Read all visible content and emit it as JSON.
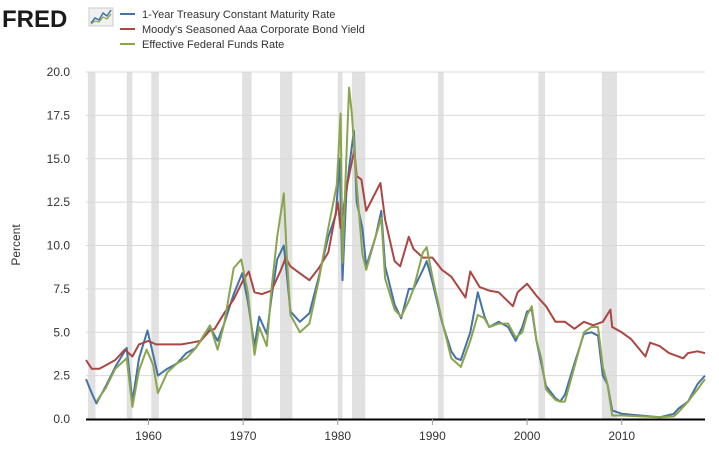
{
  "brand": {
    "name": "FRED"
  },
  "chart_data": {
    "type": "line",
    "title": "",
    "xlabel": "",
    "ylabel": "Percent",
    "xlim": [
      1953.4,
      2018.8
    ],
    "ylim": [
      0,
      20
    ],
    "yticks": [
      0.0,
      2.5,
      5.0,
      7.5,
      10.0,
      12.5,
      15.0,
      17.5,
      20.0
    ],
    "ytick_labels": [
      "0.0",
      "2.5",
      "5.0",
      "7.5",
      "10.0",
      "12.5",
      "15.0",
      "17.5",
      "20.0"
    ],
    "xticks": [
      1960,
      1970,
      1980,
      1990,
      2000,
      2010
    ],
    "xtick_labels": [
      "1960",
      "1970",
      "1980",
      "1990",
      "2000",
      "2010"
    ],
    "grid": true,
    "legend_position": "top-left",
    "recessions": [
      [
        1953.6,
        1954.4
      ],
      [
        1957.7,
        1958.3
      ],
      [
        1960.3,
        1961.1
      ],
      [
        1969.9,
        1970.9
      ],
      [
        1973.9,
        1975.2
      ],
      [
        1980.0,
        1980.5
      ],
      [
        1981.5,
        1982.9
      ],
      [
        1990.6,
        1991.2
      ],
      [
        2001.2,
        2001.9
      ],
      [
        2007.9,
        2009.5
      ]
    ],
    "series": [
      {
        "name": "1-Year Treasury Constant Maturity Rate",
        "color": "#4572a7",
        "x": [
          1953.4,
          1954.0,
          1954.5,
          1955.5,
          1956.5,
          1957.7,
          1958.3,
          1959.0,
          1959.9,
          1960.5,
          1961.0,
          1962.0,
          1963.0,
          1964.0,
          1965.0,
          1966.5,
          1967.3,
          1968.0,
          1969.0,
          1969.9,
          1970.5,
          1971.2,
          1971.7,
          1972.5,
          1973.0,
          1973.6,
          1974.3,
          1974.6,
          1975.0,
          1976.0,
          1977.0,
          1978.0,
          1979.0,
          1979.8,
          1980.2,
          1980.5,
          1980.9,
          1981.2,
          1981.7,
          1982.0,
          1982.6,
          1983.0,
          1984.0,
          1984.6,
          1985.0,
          1986.0,
          1986.7,
          1987.5,
          1988.0,
          1989.0,
          1989.4,
          1990.0,
          1991.0,
          1992.0,
          1992.5,
          1993.0,
          1994.0,
          1994.8,
          1995.5,
          1996.0,
          1997.0,
          1998.0,
          1998.8,
          1999.5,
          2000.0,
          2000.5,
          2001.0,
          2001.5,
          2002.0,
          2003.0,
          2003.5,
          2004.0,
          2005.0,
          2006.0,
          2006.8,
          2007.5,
          2008.0,
          2008.5,
          2009.0,
          2010.0,
          2012.0,
          2014.0,
          2015.5,
          2016.0,
          2017.0,
          2018.0,
          2018.8
        ],
        "values": [
          2.3,
          1.5,
          0.9,
          1.9,
          3.0,
          4.1,
          1.0,
          3.5,
          5.1,
          3.7,
          2.5,
          2.9,
          3.2,
          3.8,
          4.1,
          5.3,
          4.5,
          5.5,
          7.2,
          8.4,
          6.8,
          4.2,
          5.9,
          4.9,
          7.0,
          9.2,
          10.0,
          8.4,
          6.2,
          5.6,
          6.1,
          8.2,
          10.5,
          11.8,
          15.0,
          8.0,
          13.0,
          14.5,
          16.6,
          12.5,
          11.0,
          8.8,
          10.5,
          12.0,
          8.8,
          6.6,
          5.8,
          7.5,
          7.5,
          8.6,
          9.1,
          7.9,
          5.6,
          3.9,
          3.5,
          3.4,
          5.0,
          7.3,
          5.9,
          5.3,
          5.6,
          5.3,
          4.5,
          5.3,
          6.2,
          6.3,
          4.5,
          3.2,
          1.9,
          1.2,
          1.0,
          1.4,
          3.2,
          4.9,
          5.0,
          4.8,
          2.5,
          2.0,
          0.5,
          0.3,
          0.2,
          0.1,
          0.3,
          0.6,
          1.0,
          2.0,
          2.5
        ]
      },
      {
        "name": "Moody's Seasoned Aaa Corporate Bond Yield",
        "color": "#aa4643",
        "x": [
          1953.4,
          1954.0,
          1954.8,
          1955.5,
          1956.5,
          1957.5,
          1958.3,
          1959.0,
          1960.0,
          1960.8,
          1961.5,
          1962.5,
          1963.5,
          1964.5,
          1965.5,
          1966.5,
          1967.0,
          1968.0,
          1969.0,
          1970.0,
          1970.6,
          1971.2,
          1972.0,
          1973.0,
          1974.0,
          1974.5,
          1975.0,
          1976.0,
          1977.0,
          1978.0,
          1979.0,
          1980.0,
          1980.3,
          1980.5,
          1981.0,
          1981.75,
          1982.0,
          1982.5,
          1983.0,
          1984.5,
          1985.0,
          1986.0,
          1986.6,
          1987.5,
          1988.0,
          1989.0,
          1990.0,
          1991.0,
          1992.0,
          1993.5,
          1994.0,
          1995.0,
          1996.0,
          1997.0,
          1998.5,
          1999.0,
          2000.0,
          2001.0,
          2002.0,
          2003.0,
          2004.0,
          2005.0,
          2006.0,
          2007.0,
          2008.0,
          2008.8,
          2009.0,
          2010.0,
          2011.0,
          2012.5,
          2013.0,
          2014.0,
          2015.0,
          2016.5,
          2017.0,
          2018.0,
          2018.8
        ],
        "values": [
          3.4,
          2.9,
          2.9,
          3.1,
          3.4,
          4.0,
          3.6,
          4.3,
          4.5,
          4.3,
          4.3,
          4.3,
          4.3,
          4.4,
          4.5,
          5.1,
          5.2,
          6.1,
          6.9,
          8.0,
          8.5,
          7.3,
          7.2,
          7.4,
          8.6,
          9.3,
          8.8,
          8.4,
          8.0,
          8.7,
          9.6,
          12.5,
          11.0,
          11.8,
          13.5,
          15.5,
          14.0,
          13.8,
          12.0,
          13.6,
          11.5,
          9.1,
          8.8,
          10.5,
          9.8,
          9.3,
          9.3,
          8.6,
          8.2,
          7.0,
          8.5,
          7.6,
          7.4,
          7.3,
          6.5,
          7.3,
          7.8,
          7.1,
          6.5,
          5.6,
          5.6,
          5.2,
          5.6,
          5.4,
          5.6,
          6.3,
          5.3,
          5.0,
          4.6,
          3.6,
          4.4,
          4.2,
          3.8,
          3.5,
          3.8,
          3.9,
          3.8
        ]
      },
      {
        "name": "Effective Federal Funds Rate",
        "color": "#89a54e",
        "x": [
          1954.5,
          1955.5,
          1956.5,
          1957.7,
          1958.3,
          1959.0,
          1959.8,
          1960.5,
          1961.0,
          1962.0,
          1963.0,
          1964.0,
          1965.0,
          1966.5,
          1967.3,
          1968.0,
          1969.0,
          1969.8,
          1970.5,
          1971.2,
          1971.7,
          1972.5,
          1973.0,
          1973.6,
          1974.3,
          1974.6,
          1975.0,
          1976.0,
          1977.0,
          1978.0,
          1979.0,
          1979.9,
          1980.3,
          1980.5,
          1980.9,
          1981.2,
          1981.5,
          1982.0,
          1982.6,
          1983.0,
          1984.0,
          1984.6,
          1985.0,
          1986.0,
          1986.7,
          1987.5,
          1988.0,
          1989.0,
          1989.4,
          1990.0,
          1991.0,
          1992.0,
          1993.0,
          1994.0,
          1994.8,
          1995.5,
          1996.0,
          1997.0,
          1998.0,
          1998.8,
          1999.5,
          2000.0,
          2000.5,
          2001.0,
          2001.5,
          2002.0,
          2003.0,
          2003.5,
          2004.0,
          2005.0,
          2006.0,
          2006.8,
          2007.5,
          2008.0,
          2008.5,
          2009.0,
          2010.0,
          2012.0,
          2014.0,
          2015.5,
          2016.0,
          2017.0,
          2018.0,
          2018.8
        ],
        "values": [
          1.0,
          1.8,
          2.9,
          3.5,
          0.7,
          2.8,
          4.0,
          3.1,
          1.5,
          2.7,
          3.2,
          3.5,
          4.1,
          5.4,
          4.0,
          5.5,
          8.7,
          9.2,
          7.3,
          3.7,
          5.3,
          4.2,
          7.5,
          10.5,
          13.0,
          9.5,
          6.0,
          5.0,
          5.5,
          8.0,
          11.0,
          13.5,
          17.6,
          9.0,
          15.0,
          19.1,
          17.5,
          13.5,
          9.5,
          8.6,
          10.5,
          11.6,
          8.1,
          6.3,
          5.9,
          6.8,
          7.5,
          9.6,
          9.9,
          8.2,
          5.7,
          3.5,
          3.0,
          4.5,
          6.0,
          5.8,
          5.3,
          5.5,
          5.5,
          4.7,
          5.0,
          6.0,
          6.5,
          4.5,
          3.5,
          1.7,
          1.1,
          1.0,
          1.0,
          3.0,
          5.0,
          5.3,
          5.3,
          3.0,
          2.0,
          0.2,
          0.2,
          0.15,
          0.1,
          0.15,
          0.4,
          1.0,
          1.7,
          2.3
        ]
      }
    ]
  }
}
